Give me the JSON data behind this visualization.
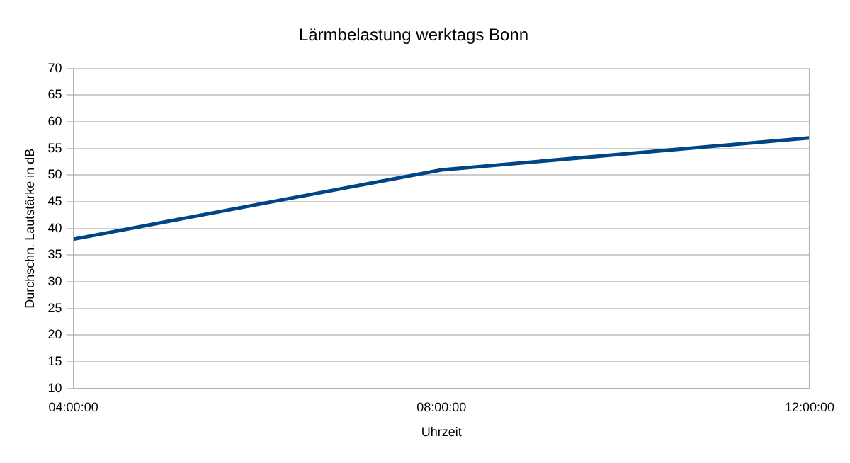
{
  "chart_data": {
    "type": "line",
    "title": "Lärmbelastung werktags Bonn",
    "xlabel": "Uhrzeit",
    "ylabel": "Durchschn. Lautstärke in dB",
    "x": [
      4,
      8,
      12
    ],
    "series": [
      {
        "color": "#004586",
        "values": [
          38,
          51,
          57
        ]
      }
    ],
    "xlim": [
      4,
      12
    ],
    "xticks": [
      {
        "value": 4,
        "label": "04:00:00"
      },
      {
        "value": 8,
        "label": "08:00:00"
      },
      {
        "value": 12,
        "label": "12:00:00"
      }
    ],
    "ylim": [
      10,
      70
    ],
    "yticks": [
      10,
      15,
      20,
      25,
      30,
      35,
      40,
      45,
      50,
      55,
      60,
      65,
      70
    ],
    "grid": "y",
    "legend": false,
    "marker": "none",
    "line_style": "solid"
  }
}
